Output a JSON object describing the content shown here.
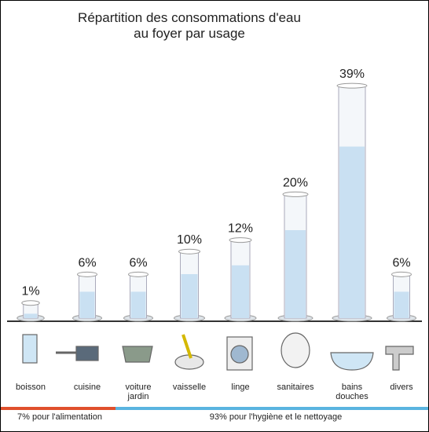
{
  "chart_data": {
    "type": "bar",
    "title": "Répartition des consommations d'eau au foyer par usage",
    "categories": [
      "boisson",
      "cuisine",
      "voiture jardin",
      "vaisselle",
      "linge",
      "sanitaires",
      "bains douches",
      "divers"
    ],
    "values": [
      1,
      6,
      6,
      10,
      12,
      20,
      39,
      6
    ],
    "value_labels": [
      "1%",
      "6%",
      "6%",
      "10%",
      "12%",
      "20%",
      "39%",
      "6%"
    ],
    "color": "#c9e0f2",
    "annotations": [
      {
        "text": "7% pour l'alimentation",
        "color": "#e0502c"
      },
      {
        "text": "93% pour l'hygiène et le nettoyage",
        "color": "#5ab4e0"
      }
    ]
  }
}
